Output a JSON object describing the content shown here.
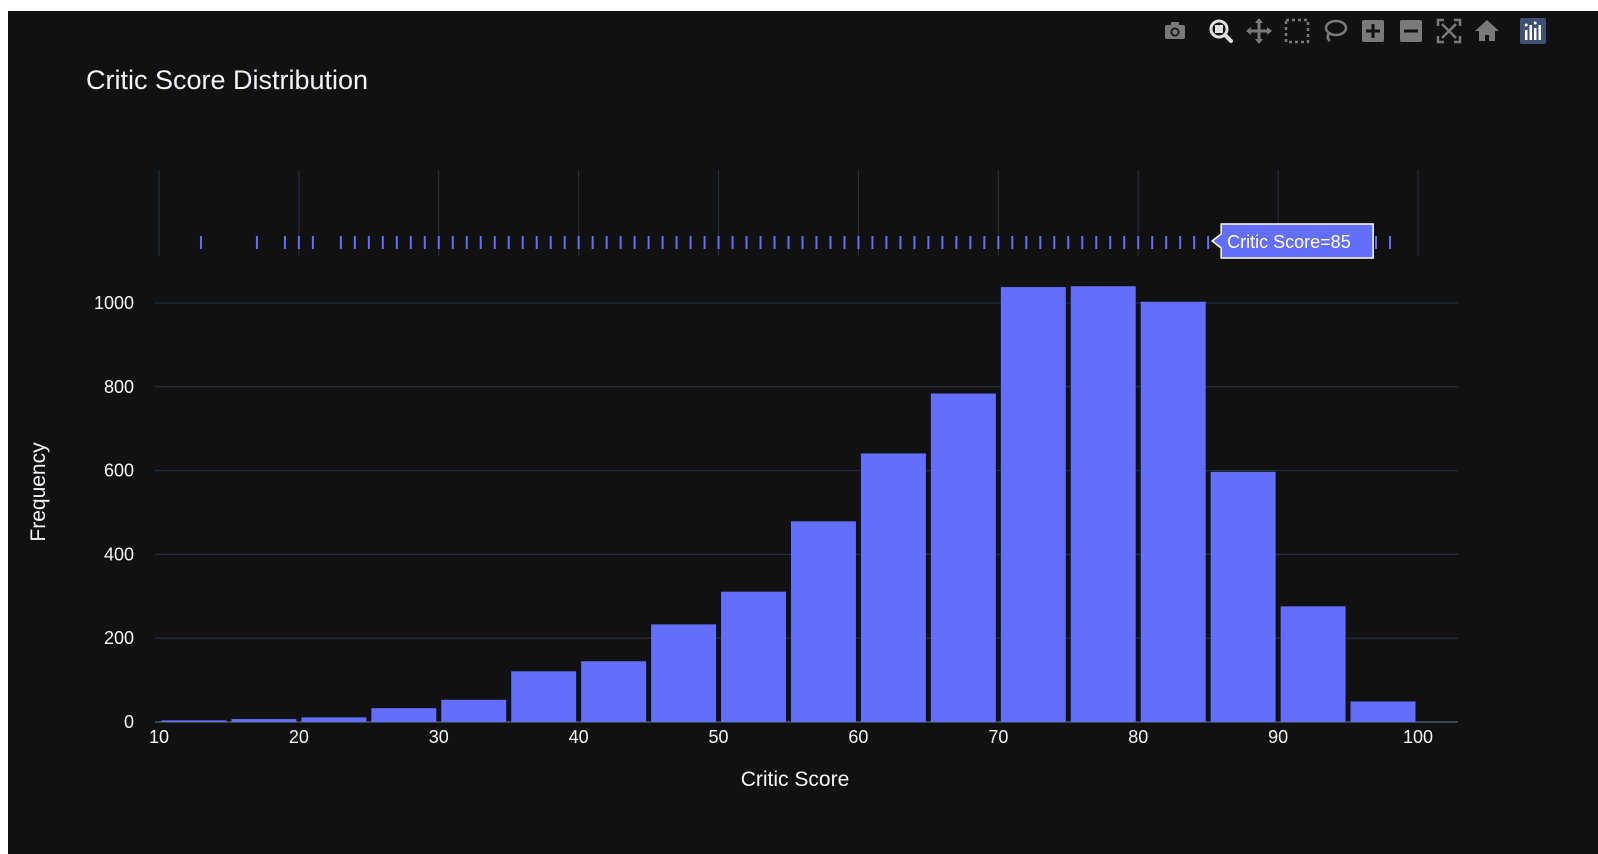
{
  "toolbar": {
    "icons": [
      "camera-icon",
      "zoom-icon",
      "pan-icon",
      "box-select-icon",
      "lasso-select-icon",
      "zoom-in-icon",
      "zoom-out-icon",
      "autoscale-icon",
      "home-icon",
      "plotly-logo-icon"
    ]
  },
  "colors": {
    "background": "#111111",
    "bar": "#636efa",
    "grid": "#283442",
    "text": "#f2f5fa"
  },
  "chart_data": {
    "type": "bar",
    "title": "Critic Score Distribution",
    "xlabel": "Critic Score",
    "ylabel": "Frequency",
    "xlim": [
      9,
      102
    ],
    "ylim": [
      0,
      1100
    ],
    "x_ticks": [
      10,
      20,
      30,
      40,
      50,
      60,
      70,
      80,
      90,
      100
    ],
    "y_ticks": [
      0,
      200,
      400,
      600,
      800,
      1000
    ],
    "bin_width": 5,
    "bins": [
      {
        "start": 10,
        "end": 15,
        "value": 4
      },
      {
        "start": 15,
        "end": 20,
        "value": 7
      },
      {
        "start": 20,
        "end": 25,
        "value": 11
      },
      {
        "start": 25,
        "end": 30,
        "value": 33
      },
      {
        "start": 30,
        "end": 35,
        "value": 53
      },
      {
        "start": 35,
        "end": 40,
        "value": 121
      },
      {
        "start": 40,
        "end": 45,
        "value": 145
      },
      {
        "start": 45,
        "end": 50,
        "value": 233
      },
      {
        "start": 50,
        "end": 55,
        "value": 311
      },
      {
        "start": 55,
        "end": 60,
        "value": 479
      },
      {
        "start": 60,
        "end": 65,
        "value": 641
      },
      {
        "start": 65,
        "end": 70,
        "value": 784
      },
      {
        "start": 70,
        "end": 75,
        "value": 1038
      },
      {
        "start": 75,
        "end": 80,
        "value": 1040
      },
      {
        "start": 80,
        "end": 85,
        "value": 1003
      },
      {
        "start": 85,
        "end": 90,
        "value": 597
      },
      {
        "start": 90,
        "end": 95,
        "value": 276
      },
      {
        "start": 95,
        "end": 100,
        "value": 49
      }
    ],
    "rug_values": [
      13,
      17,
      19,
      20,
      21,
      23,
      24,
      25,
      26,
      27,
      28,
      29,
      30,
      31,
      32,
      33,
      34,
      35,
      36,
      37,
      38,
      39,
      40,
      41,
      42,
      43,
      44,
      45,
      46,
      47,
      48,
      49,
      50,
      51,
      52,
      53,
      54,
      55,
      56,
      57,
      58,
      59,
      60,
      61,
      62,
      63,
      64,
      65,
      66,
      67,
      68,
      69,
      70,
      71,
      72,
      73,
      74,
      75,
      76,
      77,
      78,
      79,
      80,
      81,
      82,
      83,
      84,
      85,
      86,
      87,
      88,
      89,
      90,
      91,
      92,
      93,
      94,
      95,
      96,
      97,
      98
    ],
    "hover": {
      "x": 85,
      "label": "Critic Score=85"
    }
  }
}
